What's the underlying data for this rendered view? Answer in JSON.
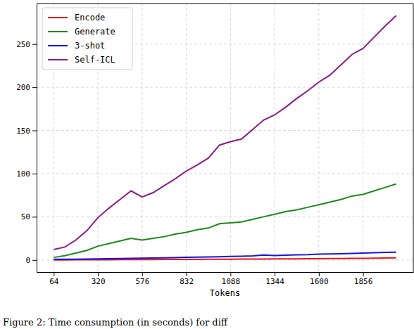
{
  "chart_data": {
    "type": "line",
    "x_label": "Tokens",
    "caption": "Figure 2: Time consumption (in seconds) for diff",
    "x": [
      64,
      128,
      192,
      256,
      320,
      384,
      448,
      512,
      576,
      640,
      704,
      768,
      832,
      896,
      960,
      1024,
      1088,
      1152,
      1216,
      1280,
      1344,
      1408,
      1472,
      1536,
      1600,
      1664,
      1728,
      1792,
      1856,
      1920,
      1984,
      2048
    ],
    "series": [
      {
        "name": "Encode",
        "color": "#e41a1c",
        "values": [
          0.1,
          0.1,
          0.2,
          0.2,
          0.3,
          0.3,
          0.4,
          0.4,
          0.5,
          0.5,
          0.6,
          0.6,
          0.7,
          0.7,
          0.8,
          0.8,
          0.9,
          1.0,
          1.0,
          1.1,
          1.2,
          1.2,
          1.3,
          1.4,
          1.5,
          1.6,
          1.7,
          1.8,
          1.9,
          2.1,
          2.2,
          2.4
        ]
      },
      {
        "name": "Generate",
        "color": "#1b8a1b",
        "values": [
          3,
          5,
          8,
          11,
          16,
          19,
          22,
          25,
          23,
          25,
          27,
          30,
          32,
          35,
          37,
          42,
          43,
          44,
          47,
          50,
          53,
          56,
          58,
          61,
          64,
          67,
          70,
          74,
          76,
          80,
          84,
          88
        ]
      },
      {
        "name": "3-shot",
        "color": "#1414e6",
        "values": [
          0.8,
          0.8,
          0.9,
          1.0,
          1.2,
          1.4,
          1.6,
          1.8,
          2.0,
          2.2,
          2.5,
          2.7,
          3.0,
          3.2,
          3.5,
          3.8,
          4.1,
          4.4,
          4.7,
          5.8,
          5.2,
          5.5,
          5.9,
          6.2,
          6.8,
          7.0,
          7.2,
          7.6,
          8.0,
          8.4,
          8.8,
          9.1
        ]
      },
      {
        "name": "Self-ICL",
        "color": "#8b1a8b",
        "values": [
          12,
          15,
          23,
          34,
          49,
          60,
          70,
          80,
          73,
          78,
          86,
          94,
          103,
          110,
          118,
          133,
          137,
          140,
          151,
          162,
          168,
          177,
          187,
          196,
          206,
          214,
          226,
          238,
          245,
          258,
          271,
          283
        ]
      }
    ],
    "xlim": [
      -35.2,
      2147.2
    ],
    "xticks": [
      64,
      320,
      576,
      832,
      1088,
      1344,
      1600,
      1856
    ],
    "ylim": [
      -14,
      297
    ],
    "yticks": [
      0,
      50,
      100,
      150,
      200,
      250
    ],
    "grid": true,
    "legend": "upper-left"
  }
}
